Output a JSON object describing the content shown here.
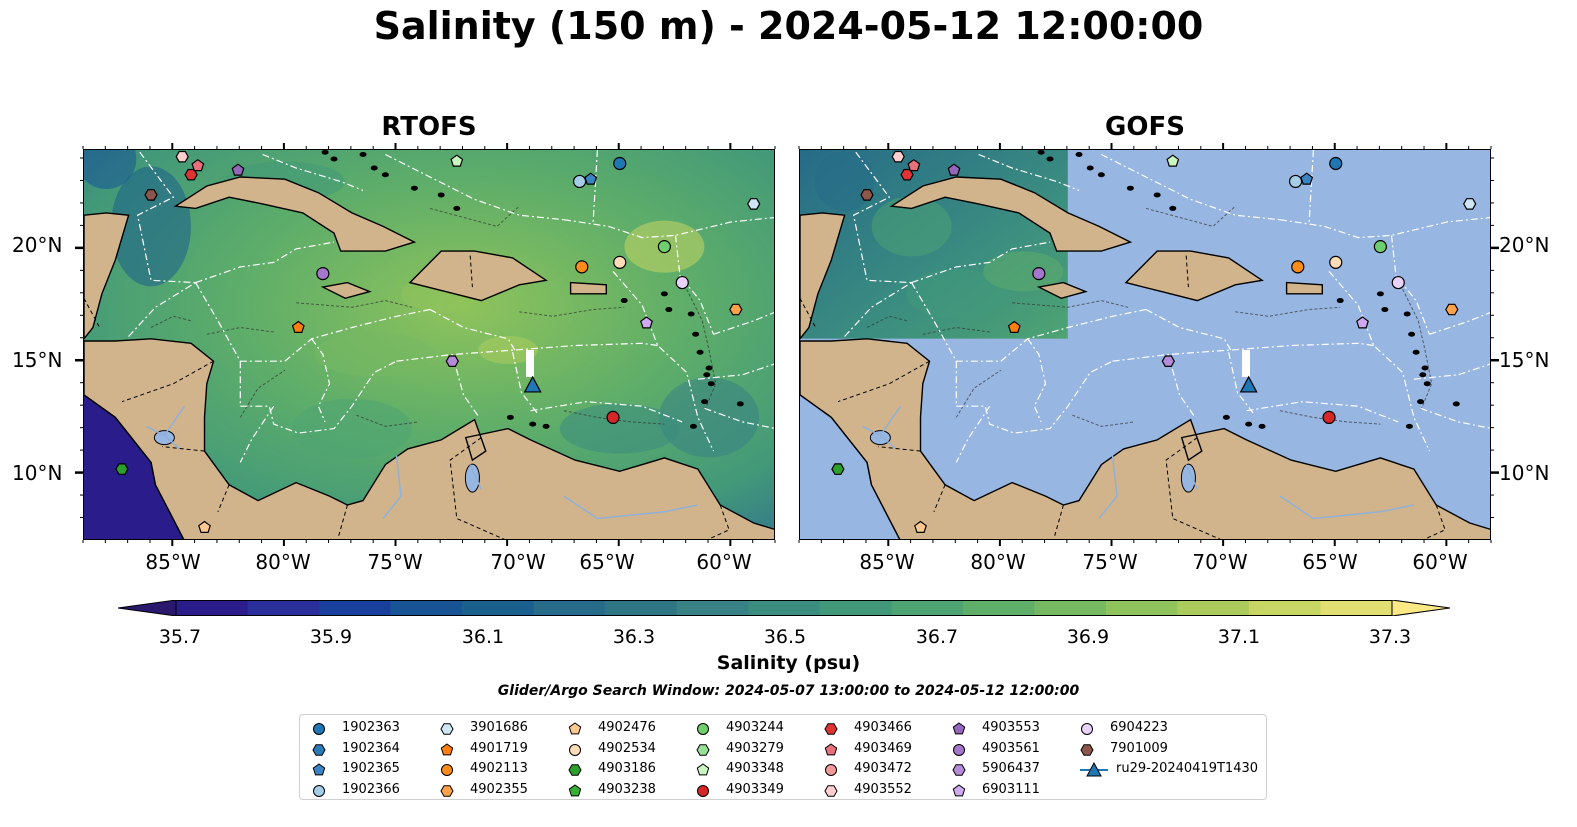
{
  "figure": {
    "suptitle": "Salinity (150 m) - 2024-05-12 12:00:00",
    "panels": [
      {
        "title": "RTOFS"
      },
      {
        "title": "GOFS"
      }
    ],
    "lat_labels": [
      "20°N",
      "15°N",
      "10°N"
    ],
    "lon_labels": [
      "85°W",
      "80°W",
      "75°W",
      "70°W",
      "65°W",
      "60°W"
    ],
    "colors": {
      "land": "#d2b48c",
      "ocean": "#97b6e1",
      "eez_lines": "#ffffff"
    }
  },
  "colorbar": {
    "title": "Salinity (psu)",
    "tick_labels": [
      "35.7",
      "35.9",
      "36.1",
      "36.3",
      "36.5",
      "36.7",
      "36.9",
      "37.1",
      "37.3"
    ],
    "colormap": "haline",
    "colors": [
      "#29186b",
      "#2a1d8b",
      "#2b2f9b",
      "#183f9c",
      "#175395",
      "#1b5f8c",
      "#266b88",
      "#2f7685",
      "#388285",
      "#3b8d80",
      "#429979",
      "#4ea472",
      "#5fae69",
      "#77b862",
      "#8fc35b",
      "#abcc5c",
      "#c7d562",
      "#e2df72",
      "#fbe986"
    ]
  },
  "search_window": "Glider/Argo Search Window: 2024-05-07 13:00:00 to 2024-05-12 12:00:00",
  "legend": [
    {
      "label": "1902363",
      "marker": "circle",
      "color": "#1f77b4"
    },
    {
      "label": "1902364",
      "marker": "hexagon",
      "color": "#2b7bba"
    },
    {
      "label": "1902365",
      "marker": "pentagon",
      "color": "#3b84c4"
    },
    {
      "label": "1902366",
      "marker": "circle",
      "color": "#a6cde8"
    },
    {
      "label": "3901686",
      "marker": "hexagon",
      "color": "#cfe6f5"
    },
    {
      "label": "4901719",
      "marker": "pentagon",
      "color": "#ff7f0e"
    },
    {
      "label": "4902113",
      "marker": "circle",
      "color": "#ff8c1a"
    },
    {
      "label": "4902355",
      "marker": "hexagon",
      "color": "#ffa24a"
    },
    {
      "label": "4902476",
      "marker": "pentagon",
      "color": "#ffc98f"
    },
    {
      "label": "4902534",
      "marker": "circle",
      "color": "#ffdcb8"
    },
    {
      "label": "4903186",
      "marker": "hexagon",
      "color": "#2ca02c"
    },
    {
      "label": "4903238",
      "marker": "pentagon",
      "color": "#35b035"
    },
    {
      "label": "4903244",
      "marker": "circle",
      "color": "#6fcf6f"
    },
    {
      "label": "4903279",
      "marker": "hexagon",
      "color": "#98e098"
    },
    {
      "label": "4903348",
      "marker": "pentagon",
      "color": "#c8f5c0"
    },
    {
      "label": "4903349",
      "marker": "circle",
      "color": "#d62728"
    },
    {
      "label": "4903466",
      "marker": "hexagon",
      "color": "#e03333"
    },
    {
      "label": "4903469",
      "marker": "pentagon",
      "color": "#e8707a"
    },
    {
      "label": "4903472",
      "marker": "circle",
      "color": "#f29999"
    },
    {
      "label": "4903552",
      "marker": "hexagon",
      "color": "#ffcfcf"
    },
    {
      "label": "4903553",
      "marker": "pentagon",
      "color": "#9467bd"
    },
    {
      "label": "4903561",
      "marker": "circle",
      "color": "#a477cc"
    },
    {
      "label": "5906437",
      "marker": "hexagon",
      "color": "#b58ad9"
    },
    {
      "label": "6903111",
      "marker": "pentagon",
      "color": "#cfaaf0"
    },
    {
      "label": "6904223",
      "marker": "circle",
      "color": "#ead2fc"
    },
    {
      "label": "7901009",
      "marker": "hexagon",
      "color": "#8c564b"
    },
    {
      "label": "ru29-20240419T1430",
      "marker": "triangle-line",
      "color": "#1f77b4"
    }
  ],
  "map_markers": [
    {
      "id": "1902363",
      "lon": -65.0,
      "lat": 23.8
    },
    {
      "id": "1902366",
      "lon": -66.8,
      "lat": 23.0
    },
    {
      "id": "1902365",
      "lon": -66.3,
      "lat": 23.1
    },
    {
      "id": "4903348",
      "lon": -72.3,
      "lat": 23.9
    },
    {
      "id": "4903552",
      "lon": -84.6,
      "lat": 24.1
    },
    {
      "id": "4903466",
      "lon": -84.2,
      "lat": 23.3
    },
    {
      "id": "4903469",
      "lon": -83.9,
      "lat": 23.7
    },
    {
      "id": "4903553",
      "lon": -82.1,
      "lat": 23.5
    },
    {
      "id": "7901009",
      "lon": -86.0,
      "lat": 22.4
    },
    {
      "id": "3901686",
      "lon": -59.0,
      "lat": 22.0
    },
    {
      "id": "4903244",
      "lon": -63.0,
      "lat": 20.1
    },
    {
      "id": "4902534",
      "lon": -65.0,
      "lat": 19.4
    },
    {
      "id": "4902113",
      "lon": -66.7,
      "lat": 19.2
    },
    {
      "id": "6904223",
      "lon": -62.2,
      "lat": 18.5
    },
    {
      "id": "4903561",
      "lon": -78.3,
      "lat": 18.9
    },
    {
      "id": "4902355",
      "lon": -59.8,
      "lat": 17.3
    },
    {
      "id": "6903111",
      "lon": -63.8,
      "lat": 16.7
    },
    {
      "id": "4901719",
      "lon": -79.4,
      "lat": 16.5
    },
    {
      "id": "5906437",
      "lon": -72.5,
      "lat": 15.0
    },
    {
      "id": "4903349",
      "lon": -65.3,
      "lat": 12.5
    },
    {
      "id": "4903186",
      "lon": -87.3,
      "lat": 10.2
    },
    {
      "id": "4902476",
      "lon": -83.6,
      "lat": 7.6
    }
  ],
  "glider": {
    "label": "ru29-20240419T1430",
    "lon": -68.9,
    "lat": 13.9
  }
}
